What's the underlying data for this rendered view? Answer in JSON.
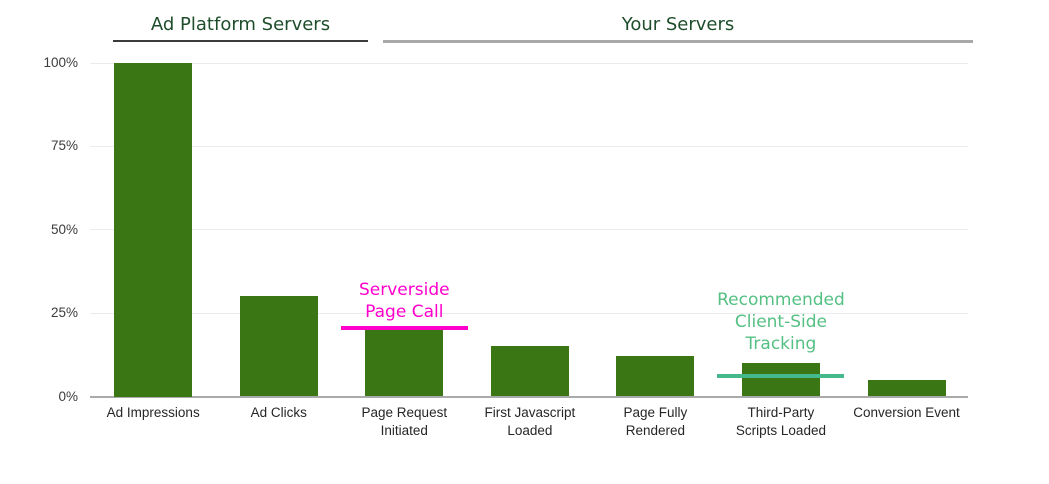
{
  "chart_data": {
    "type": "bar",
    "title": "",
    "xlabel": "",
    "ylabel": "",
    "categories": [
      "Ad Impressions",
      "Ad Clicks",
      "Page Request\nInitiated",
      "First Javascript\nLoaded",
      "Page Fully\nRendered",
      "Third-Party\nScripts Loaded",
      "Conversion Event"
    ],
    "values": [
      100,
      30,
      20,
      15,
      12,
      10,
      5
    ],
    "ylim": [
      0,
      100
    ],
    "grid": true,
    "legend": false,
    "bar_color": "#3a7613",
    "y_ticks": [
      {
        "label": "0%",
        "value": 0
      },
      {
        "label": "25%",
        "value": 25
      },
      {
        "label": "50%",
        "value": 50
      },
      {
        "label": "75%",
        "value": 75
      },
      {
        "label": "100%",
        "value": 100
      }
    ],
    "groups": [
      {
        "label": "Ad Platform Servers",
        "categories": [
          "Ad Impressions",
          "Ad Clicks"
        ],
        "text_color": "#1e4d2b",
        "line_color": "#3b3b3b"
      },
      {
        "label": "Your Servers",
        "categories": [
          "Page Request Initiated",
          "First Javascript Loaded",
          "Page Fully Rendered",
          "Third-Party Scripts Loaded",
          "Conversion Event"
        ],
        "text_color": "#1e4d2b",
        "line_color": "#a8a8a8"
      }
    ],
    "annotations": [
      {
        "text": "Serverside\nPage Call",
        "bar_index": 2,
        "line_value": 20.6,
        "text_bottom_value": 22,
        "text_color": "#ff00cc",
        "line_color": "#ff00cc"
      },
      {
        "text": "Recommended\nClient-Side\nTracking",
        "bar_index": 5,
        "line_value": 6,
        "text_bottom_value": 12.5,
        "text_color": "#55c083",
        "line_color": "#45b98c"
      }
    ]
  }
}
